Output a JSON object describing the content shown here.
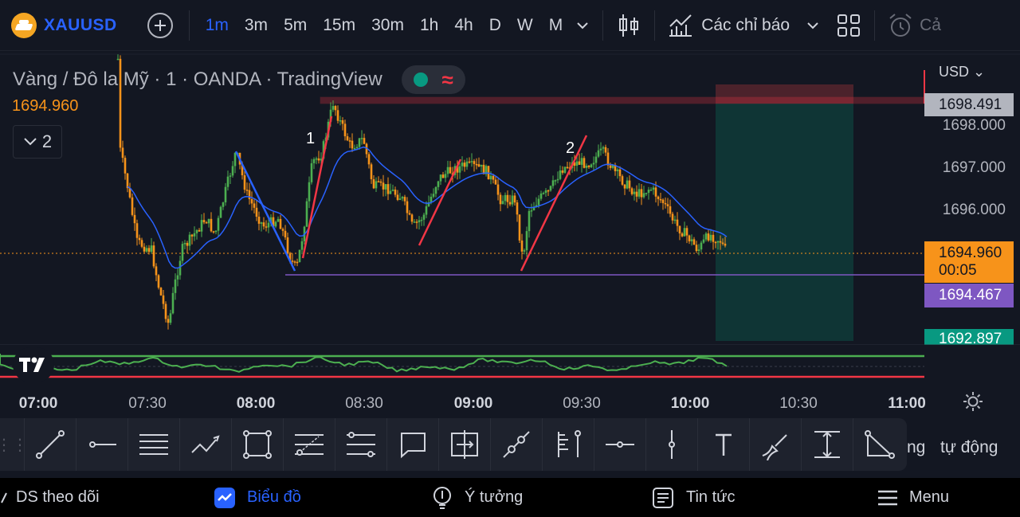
{
  "header": {
    "symbol": "XAUUSD",
    "intervals": [
      "1m",
      "3m",
      "5m",
      "15m",
      "30m",
      "1h",
      "4h",
      "D",
      "W",
      "M"
    ],
    "active_interval": "1m",
    "indicators_label": "Các chỉ báo",
    "partial_label": "Cả"
  },
  "legend": {
    "title": "Vàng / Đô la Mỹ · 1 · OANDA · TradingView",
    "last_price": "1694.960",
    "collapse_count": "2"
  },
  "price_scale": {
    "currency": "USD",
    "ticks": [
      "1698.000",
      "1697.000",
      "1696.000"
    ],
    "tag_top": "1698.491",
    "tag_current": "1694.960",
    "tag_countdown": "00:05",
    "tag_purple": "1694.467",
    "tag_green": "1692.897"
  },
  "annotations": {
    "label_1": "1",
    "label_2": "2"
  },
  "time_axis": {
    "labels": [
      {
        "text": "07:00",
        "bold": true
      },
      {
        "text": "07:30",
        "bold": false
      },
      {
        "text": "08:00",
        "bold": true
      },
      {
        "text": "08:30",
        "bold": false
      },
      {
        "text": "09:00",
        "bold": true
      },
      {
        "text": "09:30",
        "bold": false
      },
      {
        "text": "10:00",
        "bold": true
      },
      {
        "text": "10:30",
        "bold": false
      },
      {
        "text": "11:00",
        "bold": true
      }
    ]
  },
  "drawing_tools": [
    {
      "name": "trend-line-tool-icon"
    },
    {
      "name": "horizontal-ray-tool-icon"
    },
    {
      "name": "parallel-channel-tool-icon"
    },
    {
      "name": "pattern-tool-icon"
    },
    {
      "name": "rectangle-tool-icon"
    },
    {
      "name": "fib-retracement-tool-icon"
    },
    {
      "name": "gann-tool-icon"
    },
    {
      "name": "callout-tool-icon"
    },
    {
      "name": "measure-tool-icon"
    },
    {
      "name": "ray-tool-icon"
    },
    {
      "name": "forecast-tool-icon"
    },
    {
      "name": "horizontal-line-tool-icon"
    },
    {
      "name": "vertical-line-tool-icon"
    },
    {
      "name": "text-tool-icon"
    },
    {
      "name": "brush-tool-icon"
    },
    {
      "name": "price-range-tool-icon"
    },
    {
      "name": "angle-tool-icon"
    }
  ],
  "auto_scale": {
    "partial": "ng",
    "label": "tự động"
  },
  "bottom_nav": {
    "watchlist": "DS theo dõi",
    "chart": "Biểu đồ",
    "ideas": "Ý tưởng",
    "news": "Tin tức",
    "menu": "Menu"
  },
  "colors": {
    "background": "#131722",
    "accent": "#2962ff",
    "up": "#4caf50",
    "down": "#f7931a",
    "sell": "#f23645",
    "purple": "#7e57c2",
    "teal": "#089981"
  }
}
